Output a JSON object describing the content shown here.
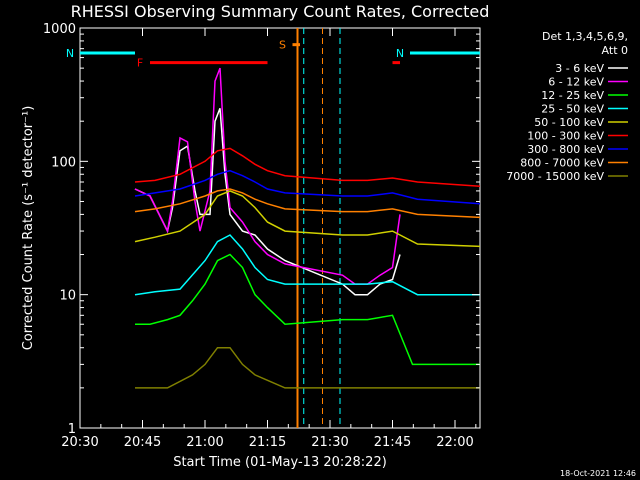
{
  "chart_data": {
    "type": "line",
    "title": "RHESSI Observing Summary Count Rates, Corrected",
    "xlabel": "Start Time (01-May-13 20:28:22)",
    "ylabel": "Corrected Count Rate (s⁻¹ detector⁻¹)",
    "y_scale": "log",
    "ylim": [
      1,
      1000
    ],
    "xlim_minutes": [
      20.5,
      22.1
    ],
    "x_ticks": [
      "20:30",
      "20:45",
      "21:00",
      "21:15",
      "21:30",
      "21:45",
      "22:00"
    ],
    "y_ticks": [
      "1",
      "10",
      "100",
      "1000"
    ],
    "legend_header": [
      "Det 1,3,4,5,6,9,",
      "Att 0"
    ],
    "timestamp": "18-Oct-2021 12:46",
    "gaps": [
      [
        21.37,
        21.47
      ]
    ],
    "night_start_hours": 21.395,
    "night_end_hours": 21.54,
    "series": [
      {
        "name": "3 - 6 keV",
        "color": "#ffffff",
        "points": [
          [
            20.72,
            62
          ],
          [
            20.78,
            55
          ],
          [
            20.85,
            30
          ],
          [
            20.87,
            45
          ],
          [
            20.9,
            120
          ],
          [
            20.93,
            130
          ],
          [
            20.96,
            60
          ],
          [
            20.98,
            40
          ],
          [
            21.02,
            40
          ],
          [
            21.04,
            200
          ],
          [
            21.06,
            250
          ],
          [
            21.08,
            80
          ],
          [
            21.1,
            40
          ],
          [
            21.15,
            30
          ],
          [
            21.2,
            28
          ],
          [
            21.25,
            22
          ],
          [
            21.32,
            18
          ],
          [
            21.55,
            12
          ],
          [
            21.6,
            10
          ],
          [
            21.65,
            10
          ],
          [
            21.7,
            12
          ],
          [
            21.75,
            13
          ],
          [
            21.78,
            20
          ]
        ]
      },
      {
        "name": "6 - 12 keV",
        "color": "#ff00ff",
        "points": [
          [
            20.72,
            62
          ],
          [
            20.78,
            55
          ],
          [
            20.85,
            30
          ],
          [
            20.87,
            50
          ],
          [
            20.9,
            150
          ],
          [
            20.93,
            140
          ],
          [
            20.96,
            50
          ],
          [
            20.98,
            30
          ],
          [
            21.02,
            60
          ],
          [
            21.04,
            400
          ],
          [
            21.06,
            500
          ],
          [
            21.08,
            100
          ],
          [
            21.1,
            45
          ],
          [
            21.15,
            35
          ],
          [
            21.2,
            25
          ],
          [
            21.25,
            20
          ],
          [
            21.32,
            17
          ],
          [
            21.55,
            14
          ],
          [
            21.6,
            12
          ],
          [
            21.65,
            12
          ],
          [
            21.7,
            14
          ],
          [
            21.75,
            16
          ],
          [
            21.78,
            40
          ]
        ]
      },
      {
        "name": "12 - 25 keV",
        "color": "#00ff00",
        "points": [
          [
            20.72,
            6
          ],
          [
            20.78,
            6
          ],
          [
            20.85,
            6.5
          ],
          [
            20.9,
            7
          ],
          [
            20.95,
            9
          ],
          [
            21.0,
            12
          ],
          [
            21.05,
            18
          ],
          [
            21.1,
            20
          ],
          [
            21.15,
            16
          ],
          [
            21.2,
            10
          ],
          [
            21.25,
            8
          ],
          [
            21.32,
            6
          ],
          [
            21.55,
            6.5
          ],
          [
            21.65,
            6.5
          ],
          [
            21.75,
            7
          ],
          [
            21.83,
            3
          ],
          [
            22.1,
            3
          ]
        ]
      },
      {
        "name": "25 - 50 keV",
        "color": "#00ffff",
        "points": [
          [
            20.72,
            10
          ],
          [
            20.8,
            10.5
          ],
          [
            20.9,
            11
          ],
          [
            21.0,
            18
          ],
          [
            21.05,
            25
          ],
          [
            21.1,
            28
          ],
          [
            21.15,
            22
          ],
          [
            21.2,
            16
          ],
          [
            21.25,
            13
          ],
          [
            21.32,
            12
          ],
          [
            21.55,
            12
          ],
          [
            21.65,
            12
          ],
          [
            21.75,
            12.5
          ],
          [
            21.85,
            10
          ],
          [
            22.1,
            10
          ]
        ]
      },
      {
        "name": "50 - 100 keV",
        "color": "#d0d000",
        "points": [
          [
            20.72,
            25
          ],
          [
            20.8,
            27
          ],
          [
            20.9,
            30
          ],
          [
            21.0,
            40
          ],
          [
            21.05,
            55
          ],
          [
            21.1,
            60
          ],
          [
            21.15,
            55
          ],
          [
            21.2,
            45
          ],
          [
            21.25,
            35
          ],
          [
            21.32,
            30
          ],
          [
            21.55,
            28
          ],
          [
            21.65,
            28
          ],
          [
            21.75,
            30
          ],
          [
            21.85,
            24
          ],
          [
            22.1,
            23
          ]
        ]
      },
      {
        "name": "100 - 300 keV",
        "color": "#ff0000",
        "points": [
          [
            20.72,
            70
          ],
          [
            20.8,
            72
          ],
          [
            20.9,
            80
          ],
          [
            21.0,
            100
          ],
          [
            21.05,
            120
          ],
          [
            21.1,
            125
          ],
          [
            21.15,
            110
          ],
          [
            21.2,
            95
          ],
          [
            21.25,
            85
          ],
          [
            21.32,
            78
          ],
          [
            21.55,
            72
          ],
          [
            21.65,
            72
          ],
          [
            21.75,
            75
          ],
          [
            21.85,
            70
          ],
          [
            22.1,
            65
          ]
        ]
      },
      {
        "name": "300 - 800 keV",
        "color": "#0000ff",
        "points": [
          [
            20.72,
            55
          ],
          [
            20.8,
            58
          ],
          [
            20.9,
            62
          ],
          [
            21.0,
            72
          ],
          [
            21.05,
            80
          ],
          [
            21.1,
            85
          ],
          [
            21.15,
            78
          ],
          [
            21.2,
            70
          ],
          [
            21.25,
            62
          ],
          [
            21.32,
            58
          ],
          [
            21.55,
            55
          ],
          [
            21.65,
            55
          ],
          [
            21.75,
            58
          ],
          [
            21.85,
            52
          ],
          [
            22.1,
            48
          ]
        ]
      },
      {
        "name": "800 - 7000 keV",
        "color": "#ff8000",
        "points": [
          [
            20.72,
            42
          ],
          [
            20.8,
            44
          ],
          [
            20.9,
            48
          ],
          [
            21.0,
            55
          ],
          [
            21.05,
            60
          ],
          [
            21.1,
            62
          ],
          [
            21.15,
            58
          ],
          [
            21.2,
            52
          ],
          [
            21.25,
            48
          ],
          [
            21.32,
            44
          ],
          [
            21.55,
            42
          ],
          [
            21.65,
            42
          ],
          [
            21.75,
            44
          ],
          [
            21.85,
            40
          ],
          [
            22.1,
            38
          ]
        ]
      },
      {
        "name": "7000 - 15000 keV",
        "color": "#808000",
        "points": [
          [
            20.72,
            2
          ],
          [
            20.85,
            2
          ],
          [
            20.95,
            2.5
          ],
          [
            21.0,
            3
          ],
          [
            21.05,
            4
          ],
          [
            21.1,
            4
          ],
          [
            21.15,
            3
          ],
          [
            21.2,
            2.5
          ],
          [
            21.32,
            2
          ],
          [
            21.55,
            2
          ],
          [
            21.65,
            2
          ],
          [
            21.75,
            2
          ],
          [
            21.85,
            2
          ],
          [
            22.1,
            2
          ]
        ]
      }
    ],
    "top_markers": [
      {
        "label": "F",
        "color": "#ff0000",
        "level": 550,
        "from": 20.78,
        "to": 21.25
      },
      {
        "label": "N",
        "color": "#00ffff",
        "level": 650,
        "from": 20.5,
        "to": 20.72
      },
      {
        "label": "N",
        "color": "#00ffff",
        "level": 650,
        "from": 21.82,
        "to": 22.1
      },
      {
        "label": "S",
        "color": "#ff8000",
        "level": 750,
        "from": 21.35,
        "to": 21.38
      },
      {
        "label": "",
        "color": "#ff0000",
        "level": 550,
        "from": 21.75,
        "to": 21.78
      }
    ]
  }
}
